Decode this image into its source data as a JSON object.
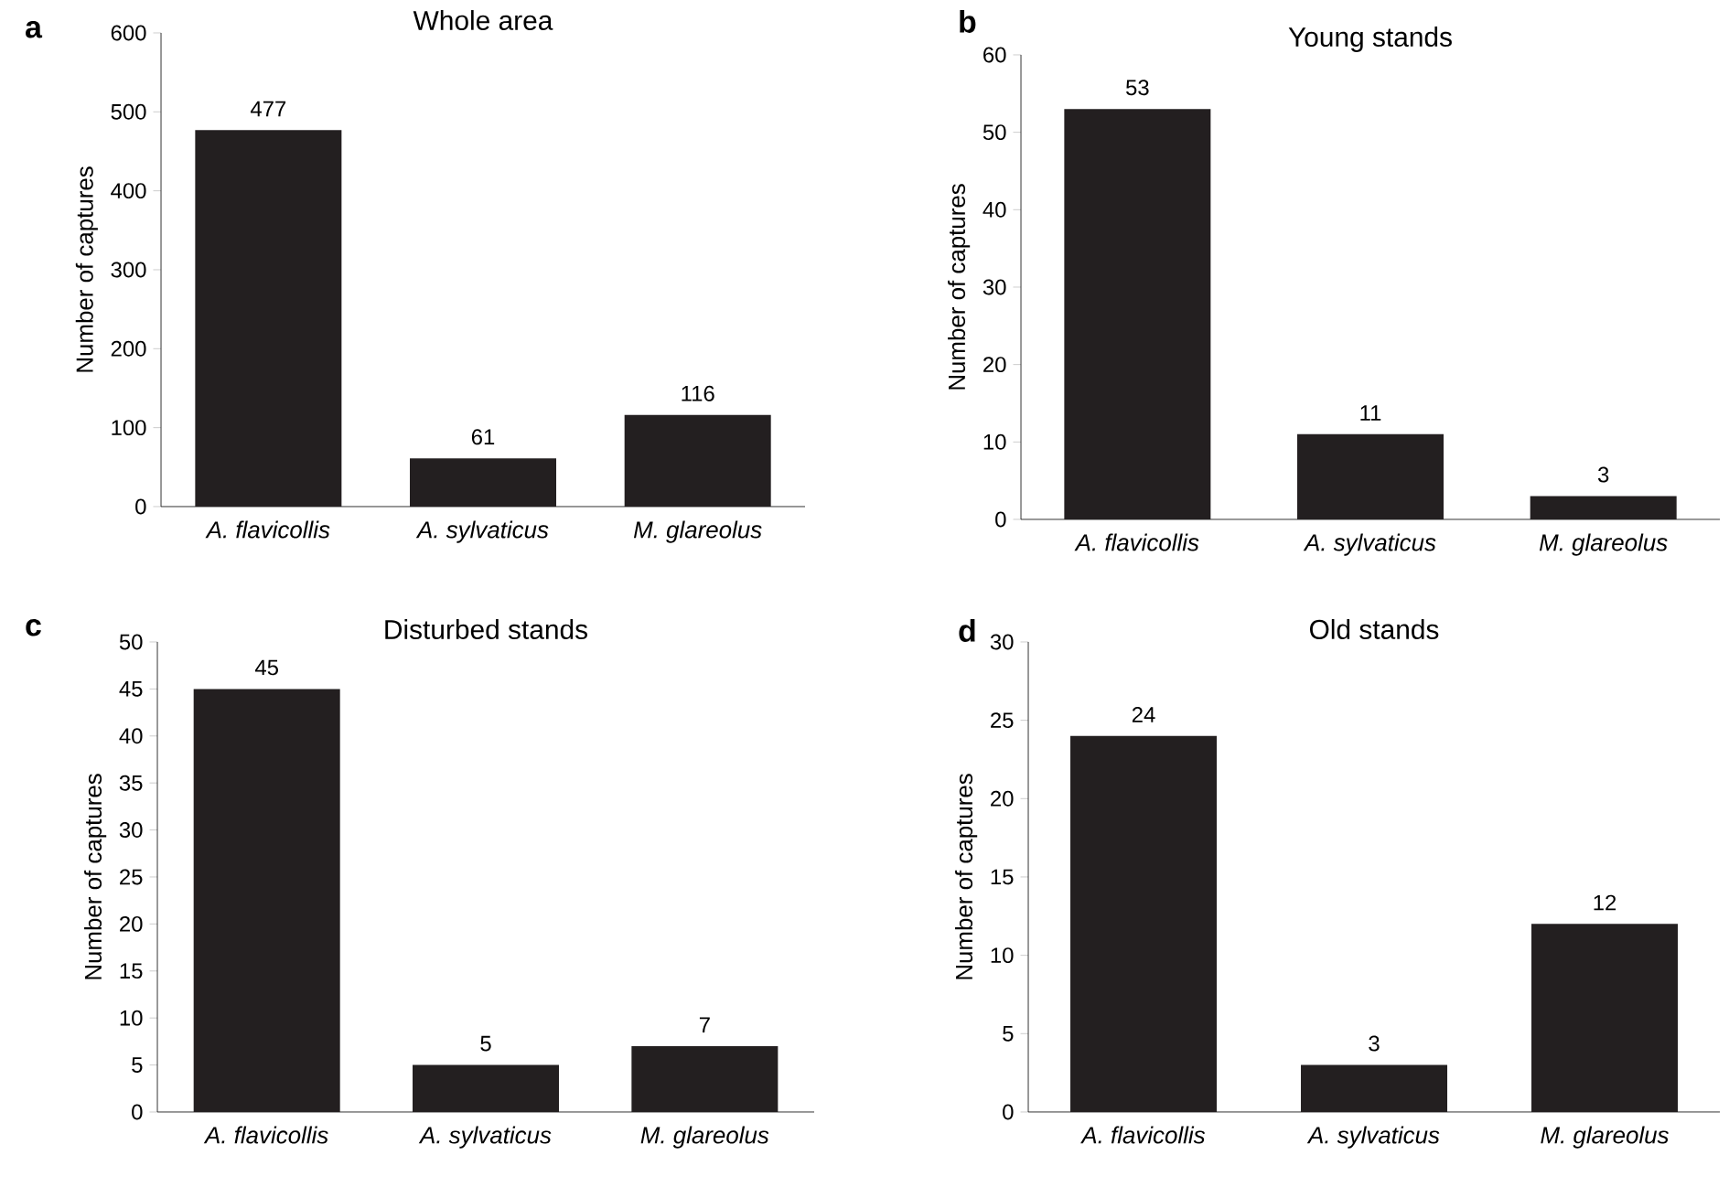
{
  "chart_data": [
    {
      "type": "bar",
      "title": "Whole area",
      "ylabel": "Number of captures",
      "annotations": [
        "a"
      ],
      "categories": [
        "A. flavicollis",
        "A. sylvaticus",
        "M. glareolus"
      ],
      "values": [
        477,
        61,
        116
      ],
      "color": "#231f20",
      "ylim": [
        0,
        600
      ],
      "yticks": [
        0,
        100,
        200,
        300,
        400,
        500,
        600
      ],
      "data_labels": true,
      "grid": false
    },
    {
      "type": "bar",
      "title": "Young stands",
      "ylabel": "Number of captures",
      "annotations": [
        "b"
      ],
      "categories": [
        "A. flavicollis",
        "A. sylvaticus",
        "M. glareolus"
      ],
      "values": [
        53,
        11,
        3
      ],
      "color": "#231f20",
      "ylim": [
        0,
        60
      ],
      "yticks": [
        0,
        10,
        20,
        30,
        40,
        50,
        60
      ],
      "data_labels": true,
      "grid": false
    },
    {
      "type": "bar",
      "title": "Disturbed stands",
      "ylabel": "Number of captures",
      "annotations": [
        "c"
      ],
      "categories": [
        "A. flavicollis",
        "A. sylvaticus",
        "M. glareolus"
      ],
      "values": [
        45,
        5,
        7
      ],
      "color": "#231f20",
      "ylim": [
        0,
        50
      ],
      "yticks": [
        0,
        5,
        10,
        15,
        20,
        25,
        30,
        35,
        40,
        45,
        50
      ],
      "data_labels": true,
      "grid": false
    },
    {
      "type": "bar",
      "title": "Old stands",
      "ylabel": "Number of captures",
      "annotations": [
        "d"
      ],
      "categories": [
        "A. flavicollis",
        "A. sylvaticus",
        "M. glareolus"
      ],
      "values": [
        24,
        3,
        12
      ],
      "color": "#231f20",
      "ylim": [
        0,
        30
      ],
      "yticks": [
        0,
        5,
        10,
        15,
        20,
        25,
        30
      ],
      "data_labels": true,
      "grid": false
    }
  ]
}
